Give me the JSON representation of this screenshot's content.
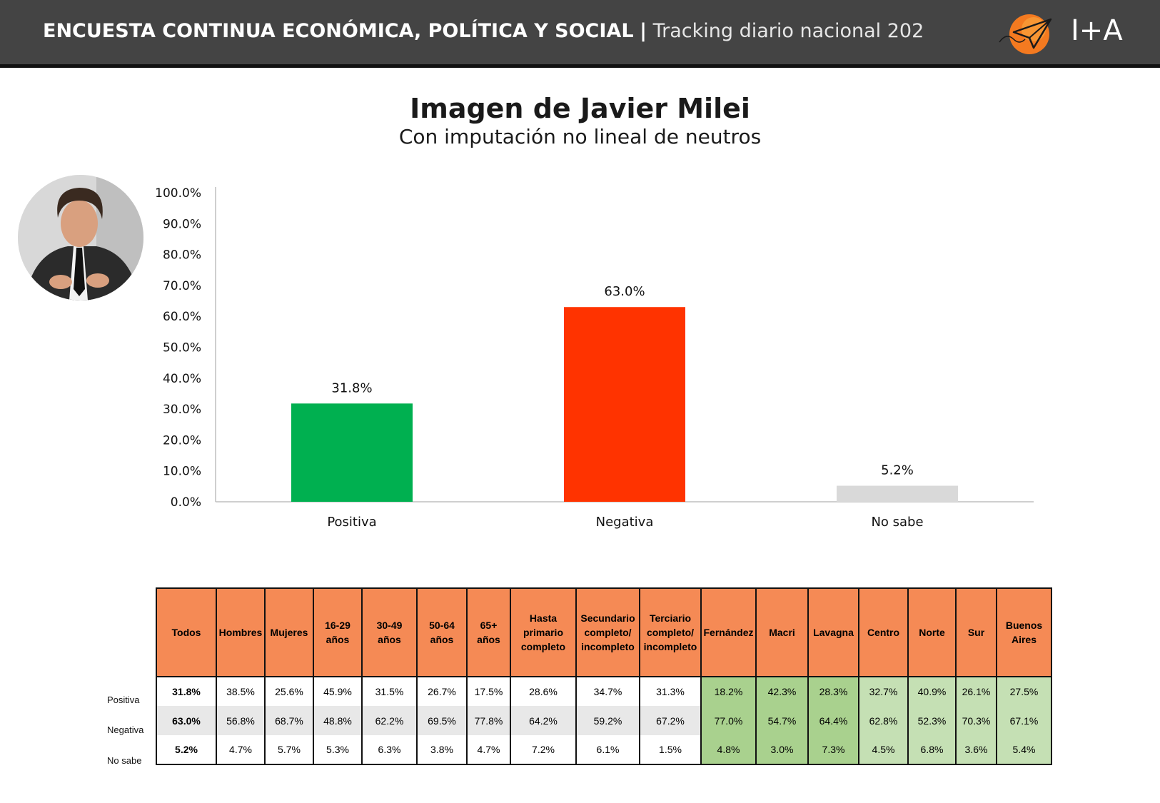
{
  "header": {
    "title_main": "ENCUESTA CONTINUA ECONÓMICA, POLÍTICA Y SOCIAL",
    "separator": "|",
    "title_sub": "Tracking diario nacional 202",
    "brand": "I+A"
  },
  "colors": {
    "header_bg": "#444444",
    "positive": "#00b050",
    "negative": "#ff3300",
    "unknown": "#d9d9d9",
    "table_header": "#f58a55",
    "table_green_dark": "#a9d18e",
    "table_green_light": "#c5e0b4"
  },
  "chart_data": {
    "type": "bar",
    "title": "Imagen de Javier Milei",
    "subtitle": "Con imputación no lineal de neutros",
    "categories": [
      "Positiva",
      "Negativa",
      "No sabe"
    ],
    "values": [
      31.8,
      63.0,
      5.2
    ],
    "value_labels": [
      "31.8%",
      "63.0%",
      "5.2%"
    ],
    "bar_colors": [
      "#00b050",
      "#ff3300",
      "#d9d9d9"
    ],
    "ylim": [
      0,
      100
    ],
    "yticks": [
      "0.0%",
      "10.0%",
      "20.0%",
      "30.0%",
      "40.0%",
      "50.0%",
      "60.0%",
      "70.0%",
      "80.0%",
      "90.0%",
      "100.0%"
    ],
    "grid": false,
    "legend": "none"
  },
  "table": {
    "headers": [
      [
        "Todos"
      ],
      [
        "Hombres"
      ],
      [
        "Mujeres"
      ],
      [
        "16-29",
        "años"
      ],
      [
        "30-49",
        "años"
      ],
      [
        "50-64",
        "años"
      ],
      [
        "65+",
        "años"
      ],
      [
        "Hasta",
        "primario",
        "completo"
      ],
      [
        "Secundario",
        "completo/",
        "incompleto"
      ],
      [
        "Terciario",
        "completo/",
        "incompleto"
      ],
      [
        "Fernández"
      ],
      [
        "Macri"
      ],
      [
        "Lavagna"
      ],
      [
        "Centro"
      ],
      [
        "Norte"
      ],
      [
        "Sur"
      ],
      [
        "Buenos",
        "Aires"
      ]
    ],
    "rows": [
      {
        "label": "Positiva",
        "values": [
          "31.8%",
          "38.5%",
          "25.6%",
          "45.9%",
          "31.5%",
          "26.7%",
          "17.5%",
          "28.6%",
          "34.7%",
          "31.3%",
          "18.2%",
          "42.3%",
          "28.3%",
          "32.7%",
          "40.9%",
          "26.1%",
          "27.5%"
        ]
      },
      {
        "label": "Negativa",
        "values": [
          "63.0%",
          "56.8%",
          "68.7%",
          "48.8%",
          "62.2%",
          "69.5%",
          "77.8%",
          "64.2%",
          "59.2%",
          "67.2%",
          "77.0%",
          "54.7%",
          "64.4%",
          "62.8%",
          "52.3%",
          "70.3%",
          "67.1%"
        ]
      },
      {
        "label": "No sabe",
        "values": [
          "5.2%",
          "4.7%",
          "5.7%",
          "5.3%",
          "6.3%",
          "3.8%",
          "4.7%",
          "7.2%",
          "6.1%",
          "1.5%",
          "4.8%",
          "3.0%",
          "7.3%",
          "4.5%",
          "6.8%",
          "3.6%",
          "5.4%"
        ]
      }
    ]
  }
}
